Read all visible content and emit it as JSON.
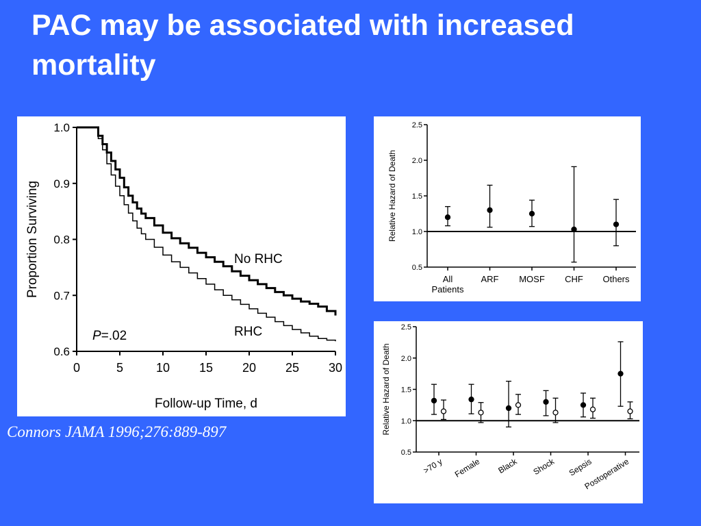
{
  "slide": {
    "title": "PAC may be associated with increased mortality",
    "citation": "Connors JAMA 1996;276:889-897"
  },
  "chart_data": [
    {
      "type": "line",
      "xlabel": "Follow-up Time, d",
      "ylabel": "Proportion Surviving",
      "xlim": [
        0,
        30
      ],
      "ylim": [
        0.6,
        1.0
      ],
      "xticks": [
        "0",
        "5",
        "10",
        "15",
        "20",
        "25",
        "30"
      ],
      "yticks": [
        "0.6",
        "0.7",
        "0.8",
        "0.9",
        "1.0"
      ],
      "annotation": "P=.02",
      "series": [
        {
          "name": "No RHC",
          "x": [
            0,
            2,
            2.5,
            3,
            3.5,
            4,
            4.5,
            5,
            5.5,
            6,
            6.5,
            7,
            7.5,
            8,
            9,
            10,
            11,
            12,
            13,
            14,
            15,
            16,
            17,
            18,
            19,
            20,
            21,
            22,
            23,
            24,
            25,
            26,
            27,
            28,
            29,
            30
          ],
          "values": [
            1.0,
            1.0,
            0.985,
            0.97,
            0.955,
            0.94,
            0.925,
            0.91,
            0.893,
            0.878,
            0.866,
            0.855,
            0.846,
            0.838,
            0.825,
            0.812,
            0.802,
            0.793,
            0.785,
            0.776,
            0.768,
            0.76,
            0.752,
            0.743,
            0.735,
            0.727,
            0.72,
            0.713,
            0.706,
            0.7,
            0.694,
            0.689,
            0.685,
            0.68,
            0.672,
            0.664
          ]
        },
        {
          "name": "RHC",
          "x": [
            0,
            2,
            2.5,
            3,
            3.5,
            4,
            4.5,
            5,
            5.5,
            6,
            6.5,
            7,
            7.5,
            8,
            9,
            10,
            11,
            12,
            13,
            14,
            15,
            16,
            17,
            18,
            19,
            20,
            21,
            22,
            23,
            24,
            25,
            26,
            27,
            28,
            29,
            30
          ],
          "values": [
            1.0,
            1.0,
            0.98,
            0.96,
            0.935,
            0.915,
            0.895,
            0.878,
            0.862,
            0.847,
            0.833,
            0.82,
            0.81,
            0.8,
            0.786,
            0.772,
            0.76,
            0.75,
            0.74,
            0.73,
            0.72,
            0.71,
            0.7,
            0.692,
            0.684,
            0.676,
            0.668,
            0.661,
            0.653,
            0.646,
            0.639,
            0.633,
            0.627,
            0.623,
            0.62,
            0.618
          ]
        }
      ]
    },
    {
      "type": "errorbar",
      "ylabel": "Relative Hazard of Death",
      "ylim": [
        0.5,
        2.5
      ],
      "yticks": [
        "0.5",
        "1.0",
        "1.5",
        "2.0",
        "2.5"
      ],
      "reference_line": 1.0,
      "categories": [
        "All Patients",
        "ARF",
        "MOSF",
        "CHF",
        "Others"
      ],
      "category_lines": [
        [
          "All",
          "Patients"
        ],
        [
          "ARF"
        ],
        [
          "MOSF"
        ],
        [
          "CHF"
        ],
        [
          "Others"
        ]
      ],
      "values": [
        1.2,
        1.3,
        1.25,
        1.03,
        1.1
      ],
      "lower": [
        1.08,
        1.06,
        1.07,
        0.57,
        0.8
      ],
      "upper": [
        1.35,
        1.65,
        1.44,
        1.91,
        1.45
      ]
    },
    {
      "type": "errorbar",
      "ylabel": "Relative Hazard of Death",
      "ylim": [
        0.5,
        2.5
      ],
      "yticks": [
        "0.5",
        "1.0",
        "1.5",
        "2.0",
        "2.5"
      ],
      "reference_line": 1.0,
      "categories": [
        ">70 y",
        "Female",
        "Black",
        "Shock",
        "Sepsis",
        "Postoperative"
      ],
      "series": [
        {
          "marker": "filled",
          "values": [
            1.32,
            1.34,
            1.2,
            1.3,
            1.25,
            1.75
          ],
          "lower": [
            1.1,
            1.11,
            0.9,
            1.08,
            1.06,
            1.23
          ],
          "upper": [
            1.58,
            1.58,
            1.63,
            1.48,
            1.44,
            2.26
          ]
        },
        {
          "marker": "open",
          "values": [
            1.15,
            1.13,
            1.25,
            1.13,
            1.18,
            1.15
          ],
          "lower": [
            1.02,
            0.97,
            1.1,
            0.97,
            1.04,
            1.03
          ],
          "upper": [
            1.33,
            1.29,
            1.42,
            1.36,
            1.36,
            1.3
          ]
        }
      ]
    }
  ]
}
